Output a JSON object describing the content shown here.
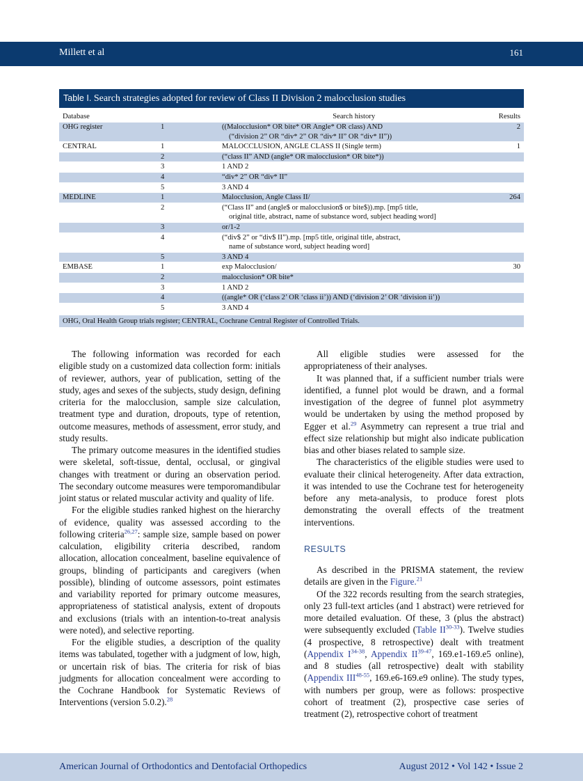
{
  "header": {
    "authors": "Millett et al",
    "page_number": "161"
  },
  "table": {
    "label": "Table I.",
    "title": "Search strategies adopted for review of Class II Division 2 malocclusion studies",
    "columns": [
      "Database",
      "Search history",
      "Results"
    ],
    "rows": [
      {
        "db": "OHG register",
        "step": "1",
        "lines": [
          "((Malocclusion* OR bite* OR Angle* OR class) AND",
          "(“division 2” OR “div* 2” OR “div* II” OR “div* II”))"
        ],
        "result": "2"
      },
      {
        "db": "CENTRAL",
        "step": "1",
        "lines": [
          "MALOCCLUSION, ANGLE CLASS II (Single term)"
        ],
        "result": "1"
      },
      {
        "db": "",
        "step": "2",
        "lines": [
          "(“class II” AND (angle* OR malocclusion* OR bite*))"
        ],
        "result": ""
      },
      {
        "db": "",
        "step": "3",
        "lines": [
          "1 AND 2"
        ],
        "result": ""
      },
      {
        "db": "",
        "step": "4",
        "lines": [
          "“div* 2” OR “div* II”"
        ],
        "result": ""
      },
      {
        "db": "",
        "step": "5",
        "lines": [
          "3 AND 4"
        ],
        "result": ""
      },
      {
        "db": "MEDLINE",
        "step": "1",
        "lines": [
          "Malocclusion, Angle Class II/"
        ],
        "result": "264"
      },
      {
        "db": "",
        "step": "2",
        "lines": [
          "(“Class II” and (angle$ or malocclusion$ or bite$)).mp. [mp5 title,",
          "original title, abstract, name of substance word, subject heading word]"
        ],
        "result": ""
      },
      {
        "db": "",
        "step": "3",
        "lines": [
          "or/1-2"
        ],
        "result": ""
      },
      {
        "db": "",
        "step": "4",
        "lines": [
          "(“div$ 2” or “div$ II”).mp. [mp5 title, original title, abstract,",
          "name of substance word, subject heading word]"
        ],
        "result": ""
      },
      {
        "db": "",
        "step": "5",
        "lines": [
          "3 AND 4"
        ],
        "result": ""
      },
      {
        "db": "EMBASE",
        "step": "1",
        "lines": [
          "exp Malocclusion/"
        ],
        "result": "30"
      },
      {
        "db": "",
        "step": "2",
        "lines": [
          "malocclusion* OR bite*"
        ],
        "result": ""
      },
      {
        "db": "",
        "step": "3",
        "lines": [
          "1 AND 2"
        ],
        "result": ""
      },
      {
        "db": "",
        "step": "4",
        "lines": [
          "((angle* OR (‘class 2’ OR ‘class ii’)) AND (‘division 2’ OR ‘division ii’))"
        ],
        "result": ""
      },
      {
        "db": "",
        "step": "5",
        "lines": [
          "3 AND 4"
        ],
        "result": ""
      }
    ],
    "footnote": "OHG, Oral Health Group trials register; CENTRAL, Cochrane Central Register of Controlled Trials."
  },
  "left_column": [
    [
      {
        "text": "The following information was recorded for each eligible study on a customized data collection form: initials of reviewer, authors, year of publication, setting of the study, ages and sexes of the subjects, study design, defining criteria for the malocclusion, sample size calculation, treatment type and duration, dropouts, type of retention, outcome measures, methods of assessment, error study, and study results."
      }
    ],
    [
      {
        "text": "The primary outcome measures in the identified studies were skeletal, soft-tissue, dental, occlusal, or gingival changes with treatment or during an observation period. The secondary outcome measures were temporomandibular joint status or related muscular activity and quality of life."
      }
    ],
    [
      {
        "text": "For the eligible studies ranked highest on the hierarchy of evidence, quality was assessed according to the following criteria"
      },
      {
        "text": "26,27",
        "style": "sup-link"
      },
      {
        "text": ": sample size, sample based on power calculation, eligibility criteria described, random allocation, allocation concealment, baseline equivalence of groups, blinding of participants and caregivers (when possible), blinding of outcome assessors, point estimates and variability reported for primary outcome measures, appropriateness of statistical analysis, extent of dropouts and exclusions (trials with an intention-to-treat analysis were noted), and selective reporting."
      }
    ],
    [
      {
        "text": "For the eligible studies, a description of the quality items was tabulated, together with a judgment of low, high, or uncertain risk of bias. The criteria for risk of bias judgments for allocation concealment were according to the Cochrane Handbook for Systematic Reviews of Interventions (version 5.0.2)."
      },
      {
        "text": "28",
        "style": "sup-link"
      }
    ]
  ],
  "right_column": {
    "before_heading": [
      [
        {
          "text": "All eligible studies were assessed for the appropriateness of their analyses."
        }
      ],
      [
        {
          "text": "It was planned that, if a sufficient number trials were identified, a funnel plot would be drawn, and a formal investigation of the degree of funnel plot asymmetry would be undertaken by using the method proposed by Egger et al."
        },
        {
          "text": "29",
          "style": "sup-link"
        },
        {
          "text": " Asymmetry can represent a true trial and effect size relationship but might also indicate publication bias and other biases related to sample size."
        }
      ],
      [
        {
          "text": "The characteristics of the eligible studies were used to evaluate their clinical heterogeneity. After data extraction, it was intended to use the Cochrane test for heterogeneity before any meta-analysis, to produce forest plots demonstrating the overall effects of the treatment interventions."
        }
      ]
    ],
    "heading": "RESULTS",
    "after_heading": [
      [
        {
          "text": "As described in the PRISMA statement, the review details are given in the "
        },
        {
          "text": "Figure.",
          "style": "link"
        },
        {
          "text": "21",
          "style": "sup-link"
        }
      ],
      [
        {
          "text": "Of the 322 records resulting from the search strategies, only 23 full-text articles (and 1 abstract) were retrieved for more detailed evaluation. Of these, 3 (plus the abstract) were subsequently excluded ("
        },
        {
          "text": "Table II",
          "style": "link"
        },
        {
          "text": "30-33",
          "style": "sup-link"
        },
        {
          "text": "). Twelve studies (4 prospective, 8 retrospective) dealt with treatment ("
        },
        {
          "text": "Appendix I",
          "style": "link"
        },
        {
          "text": "34-38",
          "style": "sup-link"
        },
        {
          "text": ", "
        },
        {
          "text": "Appendix II",
          "style": "link"
        },
        {
          "text": "39-47",
          "style": "sup-link"
        },
        {
          "text": ", 169.e1-169.e5 online), and 8 studies (all retrospective) dealt with stability ("
        },
        {
          "text": "Appendix III",
          "style": "link"
        },
        {
          "text": "48-55",
          "style": "sup-link"
        },
        {
          "text": ", 169.e6-169.e9 online). The study types, with numbers per group, were as follows: prospective cohort of treatment (2), prospective case series of treatment (2), retrospective cohort of treatment"
        }
      ]
    ]
  },
  "footer": {
    "journal": "American Journal of Orthodontics and Dentofacial Orthopedics",
    "issue": "August 2012 • Vol 142 • Issue 2"
  }
}
